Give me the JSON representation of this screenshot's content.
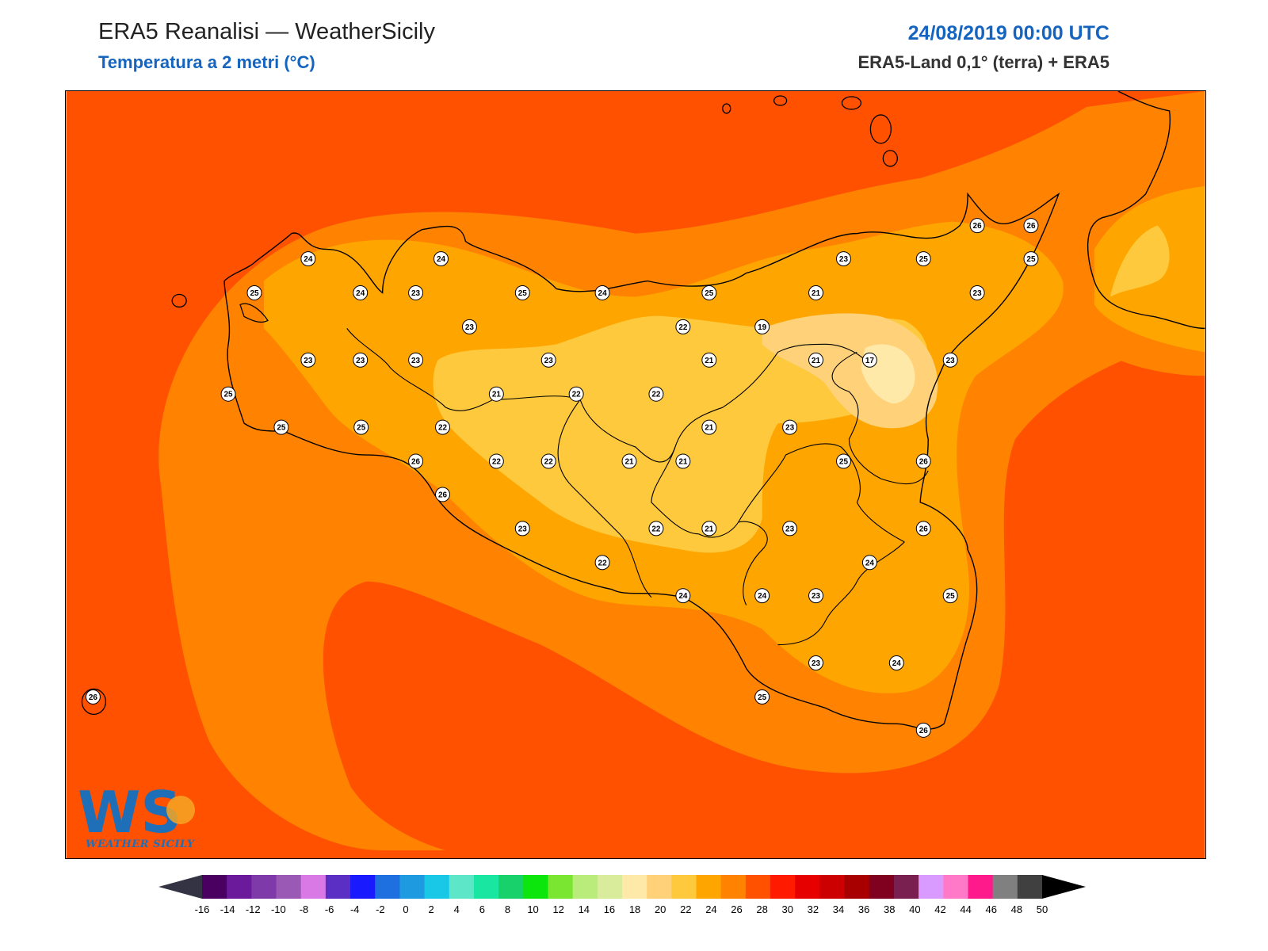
{
  "header": {
    "title": "ERA5 Reanalisi — WeatherSicily",
    "subtitle": "Temperatura a 2 metri (°C)",
    "datetime": "24/08/2019 00:00 UTC",
    "source": "ERA5-Land 0,1° (terra) + ERA5"
  },
  "logo": {
    "text": "WEATHER SICILY",
    "letters": "WS"
  },
  "colors": {
    "t26": "#ff5100",
    "t24": "#ff8200",
    "t22": "#ffa500",
    "t20": "#ffc93d",
    "t18": "#ffd27a",
    "t16": "#ffe9a8",
    "coast": "#000000"
  },
  "stations": [
    {
      "v": "24"
    },
    {
      "v": "24"
    },
    {
      "v": "25"
    },
    {
      "v": "24"
    },
    {
      "v": "23"
    },
    {
      "v": "25"
    },
    {
      "v": "24"
    },
    {
      "v": "25"
    },
    {
      "v": "23"
    },
    {
      "v": "21"
    },
    {
      "v": "23"
    },
    {
      "v": "26"
    },
    {
      "v": "26"
    },
    {
      "v": "25"
    },
    {
      "v": "25"
    },
    {
      "v": "23"
    },
    {
      "v": "22"
    },
    {
      "v": "19"
    },
    {
      "v": "23"
    },
    {
      "v": "23"
    },
    {
      "v": "23"
    },
    {
      "v": "23"
    },
    {
      "v": "21"
    },
    {
      "v": "21"
    },
    {
      "v": "17"
    },
    {
      "v": "23"
    },
    {
      "v": "25"
    },
    {
      "v": "21"
    },
    {
      "v": "22"
    },
    {
      "v": "22"
    },
    {
      "v": "22"
    },
    {
      "v": "25"
    },
    {
      "v": "25"
    },
    {
      "v": "21"
    },
    {
      "v": "23"
    },
    {
      "v": "26"
    },
    {
      "v": "22"
    },
    {
      "v": "22"
    },
    {
      "v": "21"
    },
    {
      "v": "21"
    },
    {
      "v": "25"
    },
    {
      "v": "26"
    },
    {
      "v": "26"
    },
    {
      "v": "23"
    },
    {
      "v": "22"
    },
    {
      "v": "21"
    },
    {
      "v": "23"
    },
    {
      "v": "26"
    },
    {
      "v": "24"
    },
    {
      "v": "22"
    },
    {
      "v": "24"
    },
    {
      "v": "24"
    },
    {
      "v": "23"
    },
    {
      "v": "25"
    },
    {
      "v": "23"
    },
    {
      "v": "24"
    },
    {
      "v": "25"
    },
    {
      "v": "26"
    },
    {
      "v": "26"
    }
  ],
  "colorbar": {
    "labels": [
      "-16",
      "-14",
      "-12",
      "-10",
      "-8",
      "-6",
      "-4",
      "-2",
      "0",
      "2",
      "4",
      "6",
      "8",
      "10",
      "12",
      "14",
      "16",
      "18",
      "20",
      "22",
      "24",
      "26",
      "28",
      "30",
      "32",
      "34",
      "36",
      "38",
      "40",
      "42",
      "44",
      "46",
      "48",
      "50"
    ],
    "colors": [
      "#4a0060",
      "#6a1a9a",
      "#7e3aa8",
      "#9b59b6",
      "#d979e6",
      "#5b2ec4",
      "#1a1aff",
      "#1e6fe0",
      "#1e9be0",
      "#19c8e6",
      "#5ee6c8",
      "#19e6a0",
      "#19d16a",
      "#0ce60c",
      "#7ae632",
      "#b9ec7a",
      "#d9ec9b",
      "#ffe9a8",
      "#ffd27a",
      "#ffc93d",
      "#ffa500",
      "#ff8200",
      "#ff5100",
      "#ff1a00",
      "#e60000",
      "#cc0000",
      "#a80000",
      "#800020",
      "#7a2050",
      "#d99bff",
      "#ff79c8",
      "#ff1a8c",
      "#808080",
      "#404040"
    ]
  }
}
